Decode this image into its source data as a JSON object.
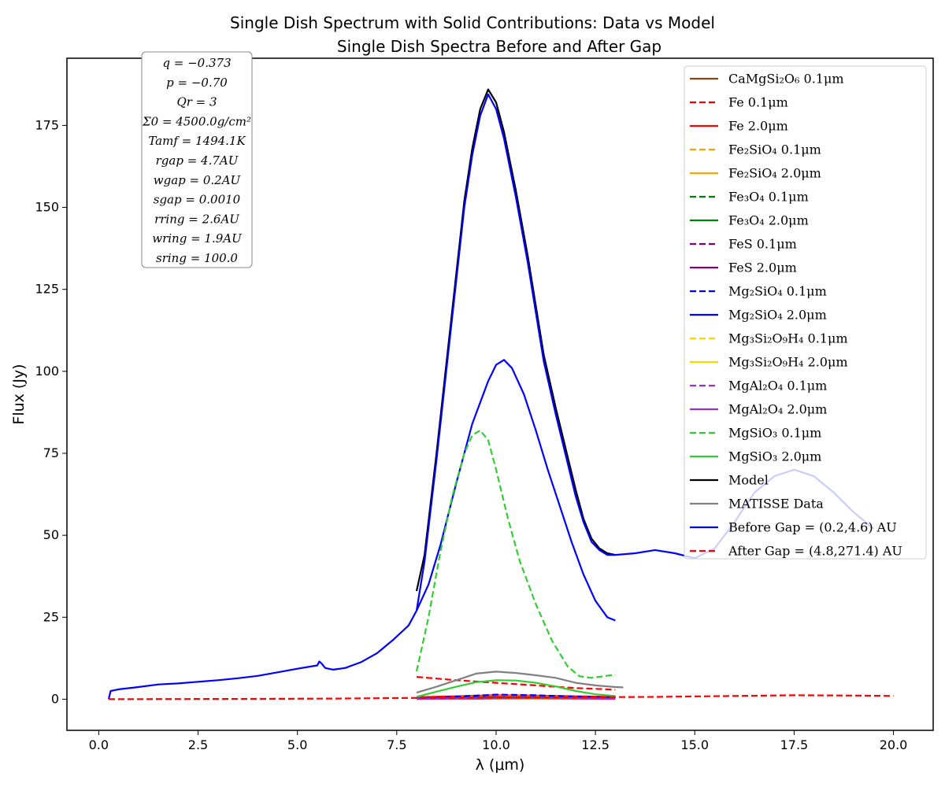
{
  "chart_data": {
    "type": "line",
    "title": "Single Dish Spectrum with Solid Contributions: Data vs Model",
    "subtitle": "Single Dish Spectra Before and After Gap",
    "xlabel": "λ (μm)",
    "ylabel": "Flux (Jy)",
    "xlim": [
      -0.8,
      21.0
    ],
    "ylim": [
      -9.5,
      195.5
    ],
    "xticks": [
      0.0,
      2.5,
      5.0,
      7.5,
      10.0,
      12.5,
      15.0,
      17.5,
      20.0
    ],
    "xtick_labels": [
      "0.0",
      "2.5",
      "5.0",
      "7.5",
      "10.0",
      "12.5",
      "15.0",
      "17.5",
      "20.0"
    ],
    "yticks": [
      0,
      25,
      50,
      75,
      100,
      125,
      150,
      175
    ],
    "ytick_labels": [
      "0",
      "25",
      "50",
      "75",
      "100",
      "125",
      "150",
      "175"
    ],
    "grid": false,
    "legend_position": "top-right",
    "parameters": [
      "q = −0.373",
      "p = −0.70",
      "Qr = 3",
      "Σ0 = 4500.0g/cm²",
      "Tamf = 1494.1K",
      "rgap = 4.7AU",
      "wgap = 0.2AU",
      "sgap = 0.0010",
      "rring = 2.6AU",
      "wring = 1.9AU",
      "sring = 100.0"
    ],
    "series": [
      {
        "name": "CaMgSi₂O₆ 0.1μm",
        "color": "#8B4513",
        "dash": "solid",
        "x": [
          8.0,
          9.0,
          10.0,
          11.0,
          12.0,
          13.0
        ],
        "y": [
          0.1,
          0.1,
          0.2,
          0.2,
          0.1,
          0.1
        ]
      },
      {
        "name": "Fe 0.1μm",
        "color": "#FF0000",
        "dash": "dashed",
        "x": [
          8.0,
          9.0,
          10.0,
          11.0,
          12.0,
          13.0
        ],
        "y": [
          6.8,
          5.8,
          5.0,
          4.2,
          3.4,
          2.9
        ]
      },
      {
        "name": "Fe 2.0μm",
        "color": "#FF0000",
        "dash": "solid",
        "x": [
          8.0,
          9.0,
          10.0,
          11.0,
          12.0,
          13.0
        ],
        "y": [
          0.6,
          0.9,
          1.2,
          1.1,
          0.9,
          0.7
        ]
      },
      {
        "name": "Fe₂SiO₄ 0.1μm",
        "color": "#FFA500",
        "dash": "dashed",
        "x": [
          8.0,
          9.0,
          10.0,
          11.0,
          12.0,
          13.0
        ],
        "y": [
          0.2,
          0.5,
          0.9,
          0.8,
          0.5,
          0.3
        ]
      },
      {
        "name": "Fe₂SiO₄ 2.0μm",
        "color": "#FFA500",
        "dash": "solid",
        "x": [
          8.0,
          9.0,
          10.0,
          11.0,
          12.0,
          13.0
        ],
        "y": [
          0.3,
          0.6,
          1.0,
          0.9,
          0.6,
          0.4
        ]
      },
      {
        "name": "Fe₃O₄ 0.1μm",
        "color": "#008000",
        "dash": "dashed",
        "x": [
          8.0,
          9.0,
          10.0,
          11.0,
          12.0,
          13.0
        ],
        "y": [
          0.1,
          0.2,
          0.3,
          0.3,
          0.2,
          0.1
        ]
      },
      {
        "name": "Fe₃O₄ 2.0μm",
        "color": "#008000",
        "dash": "solid",
        "x": [
          8.0,
          9.0,
          10.0,
          11.0,
          12.0,
          13.0
        ],
        "y": [
          0.2,
          0.3,
          0.4,
          0.4,
          0.3,
          0.2
        ]
      },
      {
        "name": "FeS 0.1μm",
        "color": "#800080",
        "dash": "dashed",
        "x": [
          8.0,
          9.0,
          10.0,
          11.0,
          12.0,
          13.0
        ],
        "y": [
          0.2,
          0.4,
          0.6,
          0.5,
          0.3,
          0.2
        ]
      },
      {
        "name": "FeS 2.0μm",
        "color": "#800080",
        "dash": "solid",
        "x": [
          8.0,
          9.0,
          10.0,
          11.0,
          12.0,
          13.0
        ],
        "y": [
          0.3,
          0.5,
          0.7,
          0.6,
          0.4,
          0.3
        ]
      },
      {
        "name": "Mg₂SiO₄ 0.1μm",
        "color": "#0000FF",
        "dash": "dashed",
        "x": [
          8.0,
          9.0,
          10.0,
          11.0,
          12.0,
          13.0
        ],
        "y": [
          0.2,
          0.8,
          1.4,
          1.2,
          0.8,
          0.5
        ]
      },
      {
        "name": "Mg₂SiO₄ 2.0μm",
        "color": "#0000FF",
        "dash": "solid",
        "x": [
          8.0,
          9.0,
          10.0,
          11.0,
          12.0,
          13.0
        ],
        "y": [
          0.1,
          0.3,
          0.5,
          0.4,
          0.3,
          0.2
        ]
      },
      {
        "name": "Mg₃Si₂O₉H₄ 0.1μm",
        "color": "#FFD700",
        "dash": "dashed",
        "x": [
          8.0,
          9.0,
          10.0,
          11.0,
          12.0,
          13.0
        ],
        "y": [
          0.1,
          0.2,
          0.3,
          0.3,
          0.2,
          0.1
        ]
      },
      {
        "name": "Mg₃Si₂O₉H₄ 2.0μm",
        "color": "#FFD700",
        "dash": "solid",
        "x": [
          8.0,
          9.0,
          10.0,
          11.0,
          12.0,
          13.0
        ],
        "y": [
          0.1,
          0.2,
          0.3,
          0.2,
          0.1,
          0.1
        ]
      },
      {
        "name": "MgAl₂O₄ 0.1μm",
        "color": "#9932CC",
        "dash": "dashed",
        "x": [
          8.0,
          9.0,
          10.0,
          11.0,
          12.0,
          13.0
        ],
        "y": [
          0.2,
          0.3,
          0.4,
          0.4,
          0.3,
          0.2
        ]
      },
      {
        "name": "MgAl₂O₄ 2.0μm",
        "color": "#9932CC",
        "dash": "solid",
        "x": [
          8.0,
          9.0,
          10.0,
          11.0,
          12.0,
          13.0
        ],
        "y": [
          0.1,
          0.2,
          0.3,
          0.3,
          0.2,
          0.1
        ]
      },
      {
        "name": "MgSiO₃ 0.1μm",
        "color": "#32CD32",
        "dash": "dashed",
        "x": [
          8.0,
          8.3,
          8.6,
          8.9,
          9.2,
          9.4,
          9.6,
          9.8,
          10.0,
          10.3,
          10.6,
          11.0,
          11.4,
          11.8,
          12.1,
          12.4,
          12.7,
          13.0
        ],
        "y": [
          8.5,
          25.0,
          45.0,
          62.0,
          75.0,
          80.5,
          82.0,
          79.0,
          70.0,
          55.0,
          42.0,
          29.0,
          18.0,
          10.0,
          7.0,
          6.5,
          7.0,
          7.5
        ]
      },
      {
        "name": "MgSiO₃ 2.0μm",
        "color": "#32CD32",
        "dash": "solid",
        "x": [
          8.0,
          8.5,
          9.0,
          9.5,
          10.0,
          10.5,
          11.0,
          11.5,
          12.0,
          12.5,
          13.0
        ],
        "y": [
          0.7,
          2.3,
          3.8,
          5.2,
          5.8,
          5.7,
          5.0,
          3.9,
          2.5,
          1.5,
          1.0
        ]
      },
      {
        "name": "Model",
        "color": "#000000",
        "dash": "solid",
        "x": [
          8.0,
          8.2,
          8.5,
          8.8,
          9.0,
          9.2,
          9.4,
          9.6,
          9.8,
          10.0,
          10.2,
          10.5,
          10.8,
          11.0,
          11.2,
          11.5,
          11.8,
          12.0,
          12.2,
          12.4,
          12.6,
          12.8,
          13.0
        ],
        "y": [
          33.0,
          44.0,
          75.0,
          108.0,
          130.0,
          152.0,
          168.0,
          180.0,
          186.0,
          182.0,
          173.0,
          155.0,
          135.0,
          120.0,
          105.0,
          89.0,
          74.0,
          64.0,
          55.0,
          49.0,
          46.0,
          44.5,
          44.0
        ]
      },
      {
        "name": "MATISSE Data",
        "color": "#808080",
        "dash": "solid",
        "x": [
          8.0,
          8.5,
          9.0,
          9.5,
          10.0,
          10.5,
          11.0,
          11.5,
          12.0,
          12.5,
          13.0,
          13.2
        ],
        "y": [
          2.0,
          3.8,
          5.8,
          7.8,
          8.4,
          8.0,
          7.3,
          6.5,
          5.0,
          4.2,
          3.7,
          3.6
        ]
      },
      {
        "name": "Before Gap = (0.2,4.6) AU",
        "color": "#0000FF",
        "dash": "solid",
        "x": [
          0.25,
          0.3,
          0.5,
          1.0,
          1.5,
          2.0,
          2.5,
          3.0,
          3.5,
          4.0,
          4.5,
          5.0,
          5.5,
          5.55,
          5.6,
          5.7,
          5.9,
          6.2,
          6.6,
          7.0,
          7.4,
          7.8,
          8.0,
          8.2,
          8.5,
          8.8,
          9.0,
          9.2,
          9.4,
          9.6,
          9.8,
          10.0,
          10.2,
          10.5,
          10.8,
          11.0,
          11.2,
          11.5,
          11.8,
          12.0,
          12.2,
          12.4,
          12.6,
          12.8,
          13.0,
          13.5,
          14.0,
          14.5,
          15.0,
          15.5,
          16.0,
          16.5,
          17.0,
          17.5,
          18.0,
          18.5,
          19.0,
          19.5
        ],
        "y": [
          0.0,
          2.5,
          3.0,
          3.7,
          4.5,
          4.8,
          5.3,
          5.8,
          6.4,
          7.1,
          8.2,
          9.3,
          10.3,
          11.5,
          11.0,
          9.5,
          9.0,
          9.5,
          11.3,
          14.0,
          18.0,
          22.5,
          27.0,
          42.0,
          73.0,
          106.0,
          128.0,
          150.0,
          166.0,
          178.0,
          184.5,
          180.0,
          171.0,
          153.0,
          133.0,
          118.0,
          103.0,
          87.0,
          72.0,
          62.0,
          54.0,
          48.0,
          45.5,
          44.0,
          44.0,
          44.5,
          45.5,
          44.5,
          43.0,
          46.0,
          54.0,
          63.0,
          68.0,
          70.0,
          68.0,
          63.0,
          57.0,
          52.0
        ]
      },
      {
        "name": "After Gap = (4.8,271.4) AU",
        "color": "#FF0000",
        "dash": "dashed",
        "x": [
          0.25,
          2.0,
          4.0,
          6.0,
          8.0,
          10.0,
          12.0,
          14.0,
          16.0,
          17.5,
          19.0,
          20.0
        ],
        "y": [
          0.0,
          0.05,
          0.1,
          0.2,
          0.4,
          0.6,
          0.6,
          0.7,
          1.0,
          1.2,
          1.1,
          1.0
        ]
      }
    ],
    "extra_curves": [
      {
        "color": "#0000FF",
        "x": [
          8.0,
          8.3,
          8.6,
          9.0,
          9.4,
          9.8,
          10.0,
          10.2,
          10.4,
          10.7,
          11.0,
          11.3,
          11.6,
          11.9,
          12.2,
          12.5,
          12.8,
          13.0
        ],
        "y": [
          27.0,
          35.0,
          47.0,
          66.0,
          84.0,
          97.0,
          102.0,
          103.5,
          101.0,
          93.0,
          82.0,
          70.0,
          59.0,
          48.0,
          38.0,
          30.0,
          25.0,
          24.0
        ]
      }
    ]
  }
}
